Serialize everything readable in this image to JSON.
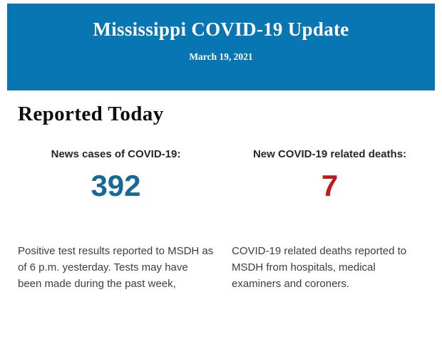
{
  "banner": {
    "title": "Mississippi COVID-19 Update",
    "date": "March 19, 2021",
    "background_color": "#0776b3",
    "text_color": "#ffffff"
  },
  "section": {
    "heading": "Reported Today"
  },
  "stats": {
    "cases": {
      "label": "News cases of COVID-19:",
      "value": "392",
      "value_color": "#166a96",
      "description": "Positive test results reported to MSDH as of 6 p.m. yesterday. Tests may have been made during the past week,"
    },
    "deaths": {
      "label": "New COVID-19 related deaths:",
      "value": "7",
      "value_color": "#c0181c",
      "description": "COVID-19 related deaths reported to MSDH from hospitals, medical examiners and coroners."
    }
  }
}
